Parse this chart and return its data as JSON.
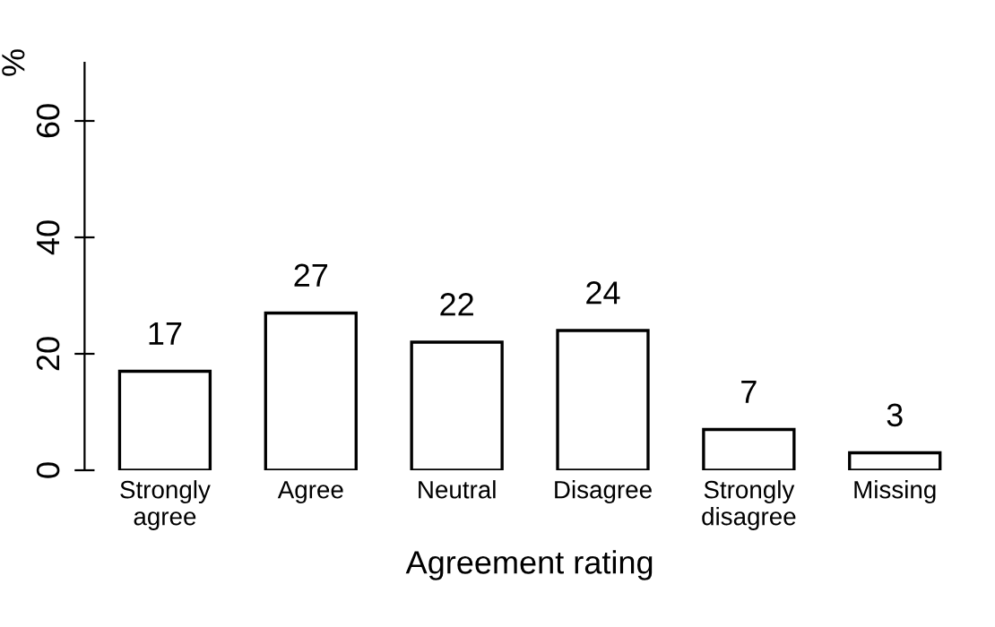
{
  "chart_data": {
    "type": "bar",
    "categories": [
      "Strongly\nagree",
      "Agree",
      "Neutral",
      "Disagree",
      "Strongly\ndisagree",
      "Missing"
    ],
    "values": [
      17,
      27,
      22,
      24,
      7,
      3
    ],
    "color": "#ffffff",
    "data_labels": true,
    "xlabel": "Agreement rating",
    "ylabel": "%",
    "ylim": [
      0,
      70
    ],
    "yticks": [
      0,
      20,
      40,
      60
    ],
    "grid": false,
    "legend": false
  }
}
